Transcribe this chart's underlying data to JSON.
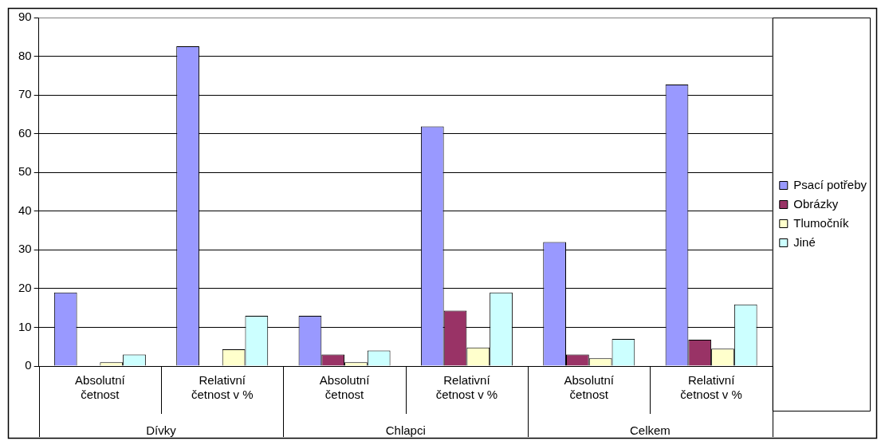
{
  "chart_data": {
    "type": "bar",
    "categories": [
      "Absolutní četnost",
      "Relativní četnost v %",
      "Absolutní četnost",
      "Relativní četnost v %",
      "Absolutní četnost",
      "Relativní četnost v %"
    ],
    "series": [
      {
        "name": "Psací potřeby",
        "color": "#9999ff",
        "values": [
          19,
          82.6,
          13,
          61.9,
          32,
          72.7
        ]
      },
      {
        "name": "Obrázky",
        "color": "#993366",
        "values": [
          0,
          0,
          3,
          14.3,
          3,
          6.8
        ]
      },
      {
        "name": "Tlumočník",
        "color": "#ffffcc",
        "values": [
          1,
          4.3,
          1,
          4.8,
          2,
          4.5
        ]
      },
      {
        "name": "Jiné",
        "color": "#ccffff",
        "values": [
          3,
          13,
          4,
          19,
          7,
          15.9
        ]
      }
    ],
    "annotations": [
      "Dívky",
      "Chlapci",
      "Celkem"
    ],
    "ylim": [
      0,
      90
    ],
    "yticks": [
      0,
      10,
      20,
      30,
      40,
      50,
      60,
      70,
      80,
      90
    ],
    "grid": "y",
    "legend": "right"
  }
}
